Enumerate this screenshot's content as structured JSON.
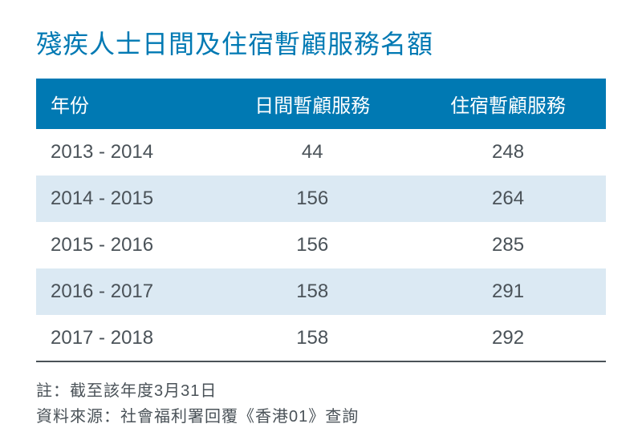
{
  "title": "殘疾人士日間及住宿暫顧服務名額",
  "colors": {
    "header_bg": "#0079b3",
    "header_text": "#ffffff",
    "title_text": "#0079b3",
    "body_text": "#4a5258",
    "row_even_bg": "#ffffff",
    "row_odd_bg": "#dbe9f3",
    "bottom_border": "#4a5258"
  },
  "table": {
    "columns": [
      "年份",
      "日間暫顧服務",
      "住宿暫顧服務"
    ],
    "rows": [
      {
        "year": "2013 - 2014",
        "day": "44",
        "residential": "248"
      },
      {
        "year": "2014 - 2015",
        "day": "156",
        "residential": "264"
      },
      {
        "year": "2015 - 2016",
        "day": "156",
        "residential": "285"
      },
      {
        "year": "2016 - 2017",
        "day": "158",
        "residential": "291"
      },
      {
        "year": "2017 - 2018",
        "day": "158",
        "residential": "292"
      }
    ]
  },
  "notes": {
    "line1": "註：截至該年度3月31日",
    "line2": "資料來源：社會福利署回覆《香港01》查詢"
  },
  "typography": {
    "title_fontsize": 32,
    "header_fontsize": 24,
    "cell_fontsize": 24,
    "note_fontsize": 20
  }
}
